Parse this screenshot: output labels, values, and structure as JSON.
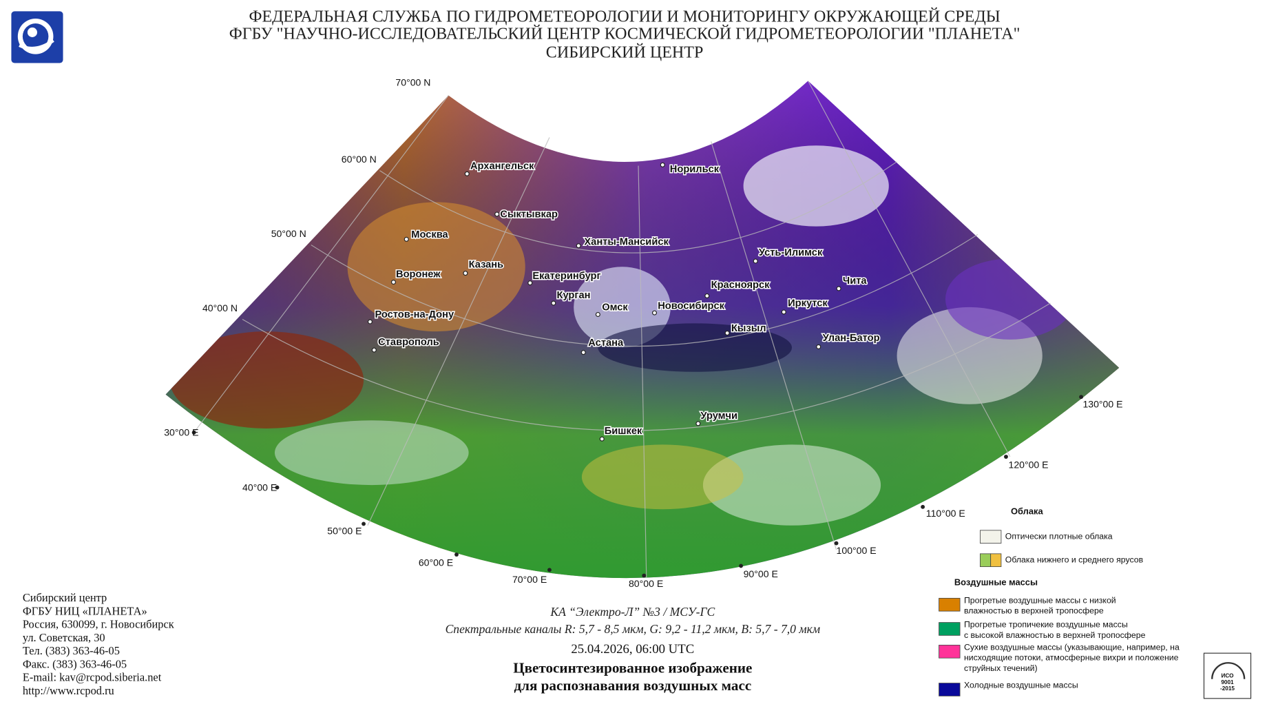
{
  "header": {
    "lines": [
      "ФЕДЕРАЛЬНАЯ СЛУЖБА ПО ГИДРОМЕТЕОРОЛОГИИ И МОНИТОРИНГУ ОКРУЖАЮЩЕЙ СРЕДЫ",
      "ФГБУ \"НАУЧНО-ИССЛЕДОВАТЕЛЬСКИЙ ЦЕНТР КОСМИЧЕСКОЙ ГИДРОМЕТЕОРОЛОГИИ \"ПЛАНЕТА\"",
      "СИБИРСКИЙ ЦЕНТР"
    ]
  },
  "map": {
    "latitudes": [
      "70°00 N",
      "60°00 N",
      "50°00 N",
      "40°00 N"
    ],
    "longitudes": [
      "30°00 E",
      "40°00 E",
      "50°00 E",
      "60°00 E",
      "70°00 E",
      "80°00 E",
      "90°00 E",
      "100°00 E",
      "110°00 E",
      "120°00 E",
      "130°00 E"
    ],
    "cities": [
      "Архангельск",
      "Норильск",
      "Сыктывкар",
      "Москва",
      "Ханты-Мансийск",
      "Казань",
      "Воронеж",
      "Усть-Илимск",
      "Екатеринбург",
      "Красноярск",
      "Чита",
      "Курган",
      "Омск",
      "Новосибирск",
      "Иркутск",
      "Ростов-на-Дону",
      "Кызыл",
      "Улан-Батор",
      "Ставрополь",
      "Астана",
      "Урумчи",
      "Бишкек"
    ]
  },
  "caption": {
    "satellite": "КА “Электро-Л” №3 / МСУ-ГС",
    "channels": "Спектральные каналы R: 5,7 - 8,5 мкм, G: 9,2 - 11,2 мкм, B: 5,7 - 7,0 мкм",
    "datetime": "25.04.2026, 06:00 UTC",
    "title_lines": [
      "Цветосинтезированное изображение",
      "для распознавания воздушных масс"
    ]
  },
  "legend": {
    "clouds_title": "Облака",
    "clouds": [
      {
        "lines": [
          "Оптически плотные облака"
        ],
        "colors": [
          "#f3f3ea"
        ]
      },
      {
        "lines": [
          "Облака нижнего и среднего ярусов"
        ],
        "colors": [
          "#9acd5a",
          "#f0c040"
        ]
      }
    ],
    "air_masses_title": "Воздушные массы",
    "air_masses": [
      {
        "lines": [
          "Прогретые воздушные массы с низкой",
          "влажностью в верхней тропосфере"
        ],
        "colors": [
          "#d98000"
        ]
      },
      {
        "lines": [
          "Прогретые тропичекие воздушные массы",
          "с высокой влажностью в верхней тропосфере"
        ],
        "colors": [
          "#00a060"
        ]
      },
      {
        "lines": [
          "Сухие воздушные массы (указывающие, например, на",
          "нисходящие потоки, атмосферные вихри и положение",
          "струйных течений)"
        ],
        "colors": [
          "#ff3399"
        ]
      },
      {
        "lines": [
          "Холодные воздушные массы"
        ],
        "colors": [
          "#0a0a9a"
        ]
      }
    ]
  },
  "footer": {
    "lines": [
      "Сибирский центр",
      "ФГБУ НИЦ «ПЛАНЕТА»",
      "Россия, 630099, г. Новосибирск",
      "ул. Советская, 30",
      "Тел. (383) 363-46-05",
      "Факс. (383) 363-46-05",
      "E-mail: kav@rcpod.siberia.net",
      "http://www.rcpod.ru"
    ]
  },
  "badge": {
    "lines": [
      "ИСО",
      "9001",
      "-2015"
    ]
  }
}
